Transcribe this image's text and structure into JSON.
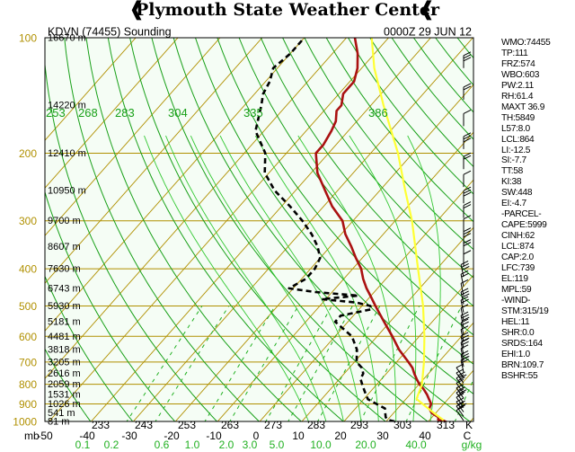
{
  "header": {
    "title": "Plymouth State Weather Center"
  },
  "chart_data": {
    "type": "skew-t log-p",
    "station": "KDVN (74455) Sounding",
    "time": "0000Z 29 JUN 12",
    "pressure_ticks": [
      "100",
      "200",
      "300",
      "400",
      "500",
      "600",
      "700",
      "800",
      "900",
      "1000"
    ],
    "pressure_unit": "mb",
    "temperature_ticks": [
      "-50",
      "-40",
      "-30",
      "-20",
      "-10",
      "0",
      "10",
      "20",
      "30",
      "40",
      "C"
    ],
    "mixing_ratio_ticks": [
      "0.1",
      "0.2",
      "0.6",
      "1.0",
      "2.0",
      "3.0",
      "5.0",
      "10.0",
      "20.0",
      "40.0",
      "g/kg"
    ],
    "theta_ticks_bottom": [
      "233",
      "243",
      "253",
      "263",
      "273",
      "283",
      "293",
      "303",
      "313",
      "K"
    ],
    "theta_ticks_top": [
      "253",
      "268",
      "283",
      "304",
      "335",
      "386"
    ],
    "height_labels": [
      {
        "p": 100,
        "label": "16670 m"
      },
      {
        "p": 150,
        "label": "14220 m"
      },
      {
        "p": 200,
        "label": "12410 m"
      },
      {
        "p": 250,
        "label": "10950 m"
      },
      {
        "p": 300,
        "label": "9700 m"
      },
      {
        "p": 350,
        "label": "8607 m"
      },
      {
        "p": 400,
        "label": "7630 m"
      },
      {
        "p": 450,
        "label": "6743 m"
      },
      {
        "p": 500,
        "label": "5930 m"
      },
      {
        "p": 550,
        "label": "5181 m"
      },
      {
        "p": 600,
        "label": "4481 m"
      },
      {
        "p": 650,
        "label": "3818 m"
      },
      {
        "p": 700,
        "label": "3205 m"
      },
      {
        "p": 750,
        "label": "2616 m"
      },
      {
        "p": 800,
        "label": "2059 m"
      },
      {
        "p": 850,
        "label": "1531 m"
      },
      {
        "p": 900,
        "label": "1026 m"
      },
      {
        "p": 950,
        "label": "541 m"
      },
      {
        "p": 1000,
        "label": "81 m"
      }
    ],
    "series": [
      {
        "name": "temperature",
        "p": [
          1000,
          990,
          975,
          950,
          925,
          900,
          875,
          850,
          825,
          800,
          775,
          750,
          725,
          700,
          650,
          600,
          550,
          500,
          475,
          450,
          425,
          400,
          375,
          350,
          325,
          300,
          275,
          250,
          225,
          200,
          190,
          175,
          165,
          155,
          150,
          140,
          130,
          120,
          110,
          100
        ],
        "values": [
          34,
          32,
          31.5,
          29,
          27.5,
          27,
          25.5,
          24,
          22.2,
          20.1,
          18.3,
          16.6,
          15,
          12.8,
          8,
          3.6,
          -1.4,
          -6.8,
          -9.6,
          -12.6,
          -15.4,
          -18,
          -21.5,
          -25,
          -29,
          -32.5,
          -38,
          -43,
          -48.5,
          -53,
          -53,
          -54,
          -55,
          -57,
          -57,
          -59,
          -59,
          -61,
          -64,
          -68
        ]
      },
      {
        "name": "dewpoint",
        "p": [
          1000,
          990,
          975,
          950,
          925,
          900,
          875,
          850,
          825,
          800,
          775,
          750,
          725,
          700,
          650,
          600,
          550,
          530,
          510,
          500,
          490,
          480,
          470,
          460,
          450,
          425,
          400,
          375,
          350,
          325,
          300,
          275,
          250,
          225,
          200,
          175,
          150,
          140,
          130,
          120,
          110,
          100
        ],
        "values": [
          22,
          20,
          19,
          18,
          17,
          14,
          11,
          9.5,
          8,
          6.5,
          5,
          4.5,
          3,
          0.5,
          -2,
          -6,
          -13,
          -13,
          -7,
          -8,
          -12,
          -21,
          -13,
          -24,
          -31,
          -29,
          -29,
          -30,
          -33,
          -37,
          -42,
          -48,
          -55,
          -61,
          -65,
          -72,
          -76,
          -78,
          -79,
          -81,
          -80,
          -80
        ]
      },
      {
        "name": "parcel",
        "p": [
          1000,
          950,
          874,
          800,
          700,
          600,
          500,
          400,
          300,
          250,
          200,
          150,
          120,
          100
        ],
        "values": [
          34,
          29.5,
          22.5,
          20.7,
          16.5,
          11.2,
          4.5,
          -4.5,
          -16,
          -24,
          -33.5,
          -47,
          -57,
          -64
        ]
      }
    ]
  },
  "indices": [
    "WMO:74455",
    "TP:111",
    "FRZ:574",
    "WBO:603",
    "PW:2.11",
    "RH:61.4",
    "MAXT 36.9",
    "TH:5849",
    "L57:8.0",
    "LCL:864",
    "LI:-12.5",
    "SI:-7.7",
    "TT:58",
    "KI:38",
    "SW:448",
    "EI:-4.7",
    "-PARCEL-",
    "CAPE:5999",
    "CINH:62",
    "LCL:874",
    "CAP:2.0",
    "LFC:739",
    "EL:119",
    "MPL:59",
    "-WIND-",
    "STM:315/19",
    "HEL:11",
    "SHR:0.0",
    "SRDS:164",
    "EHI:1.0",
    "BRN:109.7",
    "BSHR:55"
  ],
  "colors": {
    "temperature": "#aa1111",
    "dewpoint": "#000000",
    "parcel": "#ffff33",
    "pressure_axis": "#b09000",
    "isotherm": "#b09000",
    "dry_adiabat": "#18a018",
    "mixing_ratio": "#20b020",
    "moist_adiabat": "#32c832",
    "background": "#f5fdf5"
  }
}
